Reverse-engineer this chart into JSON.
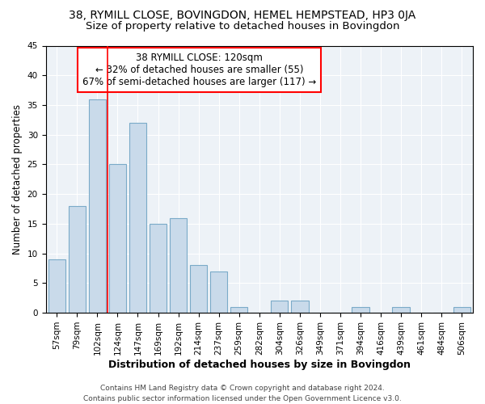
{
  "title": "38, RYMILL CLOSE, BOVINGDON, HEMEL HEMPSTEAD, HP3 0JA",
  "subtitle": "Size of property relative to detached houses in Bovingdon",
  "xlabel": "Distribution of detached houses by size in Bovingdon",
  "ylabel": "Number of detached properties",
  "categories": [
    "57sqm",
    "79sqm",
    "102sqm",
    "124sqm",
    "147sqm",
    "169sqm",
    "192sqm",
    "214sqm",
    "237sqm",
    "259sqm",
    "282sqm",
    "304sqm",
    "326sqm",
    "349sqm",
    "371sqm",
    "394sqm",
    "416sqm",
    "439sqm",
    "461sqm",
    "484sqm",
    "506sqm"
  ],
  "values": [
    9,
    18,
    36,
    25,
    32,
    15,
    16,
    8,
    7,
    1,
    0,
    2,
    2,
    0,
    0,
    1,
    0,
    1,
    0,
    0,
    1
  ],
  "bar_color": "#c9daea",
  "bar_edge_color": "#7aaac8",
  "vline_x": 2.5,
  "vline_color": "red",
  "annotation_line1": "38 RYMILL CLOSE: 120sqm",
  "annotation_line2": "← 32% of detached houses are smaller (55)",
  "annotation_line3": "67% of semi-detached houses are larger (117) →",
  "annotation_box_color": "white",
  "annotation_box_edge_color": "red",
  "ylim": [
    0,
    45
  ],
  "yticks": [
    0,
    5,
    10,
    15,
    20,
    25,
    30,
    35,
    40,
    45
  ],
  "background_color": "#edf2f7",
  "grid_color": "white",
  "footer_line1": "Contains HM Land Registry data © Crown copyright and database right 2024.",
  "footer_line2": "Contains public sector information licensed under the Open Government Licence v3.0.",
  "title_fontsize": 10,
  "subtitle_fontsize": 9.5,
  "xlabel_fontsize": 9,
  "ylabel_fontsize": 8.5,
  "annotation_fontsize": 8.5,
  "tick_fontsize": 7.5,
  "footer_fontsize": 6.5
}
